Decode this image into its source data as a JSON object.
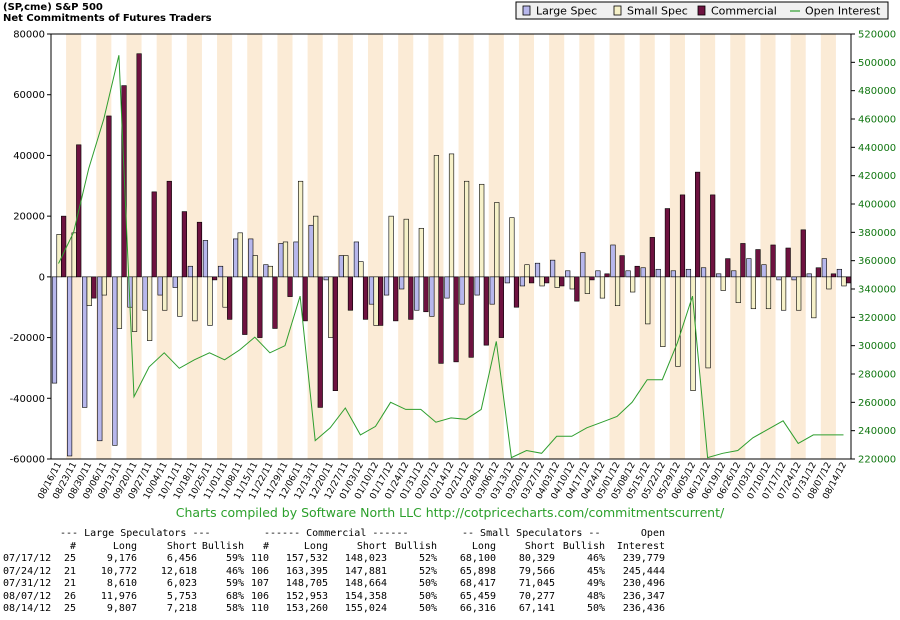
{
  "header": {
    "title": "(SP,cme) S&P 500",
    "subtitle": "Net Commitments of Futures Traders"
  },
  "legend": [
    "Large Spec",
    "Small Spec",
    "Commercial",
    "Open Interest"
  ],
  "colors": {
    "large_spec": "#b7b7ec",
    "small_spec": "#f6f1c9",
    "commercial": "#6e1240",
    "open_interest": "#2e9e2e",
    "band": "#fbebd6",
    "axis_text": "#000000",
    "right_axis_text": "#117711"
  },
  "credit": "Charts compiled by Software North LLC  http://cotpricecharts.com/commitmentscurrent/",
  "chart_data": {
    "type": "bar",
    "categories": [
      "08/16/11",
      "08/23/11",
      "08/30/11",
      "09/06/11",
      "09/13/11",
      "09/20/11",
      "09/27/11",
      "10/04/11",
      "10/11/11",
      "10/18/11",
      "10/25/11",
      "11/01/11",
      "11/08/11",
      "11/15/11",
      "11/22/11",
      "11/29/11",
      "12/06/11",
      "12/13/11",
      "12/20/11",
      "12/27/11",
      "01/03/12",
      "01/10/12",
      "01/17/12",
      "01/24/12",
      "01/31/12",
      "02/07/12",
      "02/14/12",
      "02/21/12",
      "02/28/12",
      "03/06/12",
      "03/13/12",
      "03/20/12",
      "03/27/12",
      "04/03/12",
      "04/10/12",
      "04/17/12",
      "04/24/12",
      "05/01/12",
      "05/08/12",
      "05/15/12",
      "05/22/12",
      "05/29/12",
      "06/05/12",
      "06/12/12",
      "06/19/12",
      "06/26/12",
      "07/03/12",
      "07/10/12",
      "07/17/12",
      "07/24/12",
      "07/31/12",
      "08/07/12",
      "08/14/12"
    ],
    "series": [
      {
        "name": "Large Spec",
        "values": [
          -35000,
          -59000,
          -43000,
          -54000,
          -55500,
          -10000,
          -11000,
          -6000,
          -3500,
          3500,
          12000,
          3500,
          12500,
          12500,
          4000,
          11000,
          11500,
          17000,
          -1000,
          7000,
          11500,
          -9000,
          -6000,
          -4000,
          -11000,
          -13000,
          -7000,
          -9000,
          -6000,
          -9000,
          -2000,
          -3000,
          4500,
          5500,
          2000,
          8000,
          2000,
          10500,
          2000,
          3000,
          2500,
          2000,
          2500,
          3000,
          1000,
          2000,
          6000,
          4000,
          -1000,
          -1000,
          1000,
          6000,
          2500
        ]
      },
      {
        "name": "Small Spec",
        "values": [
          14000,
          14500,
          -9500,
          -6000,
          -17000,
          -18000,
          -21000,
          -11000,
          -13000,
          -14500,
          -16000,
          -10000,
          14500,
          7000,
          3500,
          11500,
          31500,
          20000,
          -20000,
          7000,
          5000,
          -16000,
          20000,
          19000,
          16000,
          40000,
          40500,
          31500,
          30500,
          24500,
          19500,
          4000,
          -3000,
          -3500,
          -4000,
          -5500,
          -7000,
          -9500,
          -5000,
          -15500,
          -23000,
          -29500,
          -37500,
          -30000,
          -4500,
          -8500,
          -10500,
          -10500,
          -11000,
          -11000,
          -13500,
          -4000,
          -3000
        ]
      },
      {
        "name": "Commercial",
        "values": [
          20000,
          43500,
          -7000,
          53000,
          63000,
          73500,
          28000,
          31500,
          21500,
          18000,
          -1000,
          -14000,
          -19000,
          -20000,
          -17000,
          -6500,
          -14500,
          -43000,
          -37500,
          -11000,
          -14000,
          -16000,
          -14500,
          -14000,
          -11500,
          -28500,
          -28000,
          -26500,
          -22500,
          -20000,
          -10000,
          -2000,
          -2000,
          -3000,
          -8000,
          -1000,
          1000,
          7000,
          3500,
          13000,
          22500,
          27000,
          34500,
          27000,
          6000,
          11000,
          9000,
          10500,
          9500,
          15500,
          3000,
          1000,
          -2000
        ]
      },
      {
        "name": "Open Interest",
        "axis": "right",
        "values": [
          358000,
          380000,
          425000,
          460000,
          505000,
          264000,
          285000,
          295000,
          284000,
          290000,
          295000,
          290000,
          297000,
          306000,
          295000,
          300000,
          335000,
          233000,
          242000,
          256000,
          237000,
          243000,
          260000,
          255000,
          255000,
          246000,
          249000,
          248000,
          255000,
          303000,
          221000,
          226000,
          224000,
          236000,
          236000,
          242000,
          246000,
          250000,
          260000,
          276000,
          276000,
          302000,
          335000,
          221000,
          224000,
          226000,
          235000,
          241000,
          247000,
          231000,
          237000,
          237000,
          237000
        ]
      }
    ],
    "y_left": {
      "min": -60000,
      "max": 80000,
      "ticks": [
        "80000",
        "60000",
        "40000",
        "20000",
        "0",
        "-20000",
        "-40000",
        "-60000"
      ]
    },
    "y_right": {
      "min": 220000,
      "max": 520000,
      "ticks": [
        "520000",
        "500000",
        "480000",
        "460000",
        "440000",
        "420000",
        "400000",
        "380000",
        "360000",
        "340000",
        "320000",
        "300000",
        "280000",
        "260000",
        "240000",
        "220000"
      ]
    },
    "legend_position": "top-right",
    "grid": false
  },
  "table": {
    "group_headers": [
      "--- Large Speculators ---",
      "------ Commercial ------",
      "-- Small Speculators --",
      "Open"
    ],
    "col_headers": [
      "#",
      "Long",
      "Short",
      "Bullish",
      "#",
      "Long",
      "Short",
      "Bullish",
      "Long",
      "Short",
      "Bullish",
      "Interest"
    ],
    "rows": [
      [
        "07/17/12",
        "25",
        "9,176",
        "6,456",
        "59%",
        "110",
        "157,532",
        "148,023",
        "52%",
        "68,100",
        "80,329",
        "46%",
        "239,779"
      ],
      [
        "07/24/12",
        "21",
        "10,772",
        "12,618",
        "46%",
        "106",
        "163,395",
        "147,881",
        "52%",
        "65,898",
        "79,566",
        "45%",
        "245,444"
      ],
      [
        "07/31/12",
        "21",
        "8,610",
        "6,023",
        "59%",
        "107",
        "148,705",
        "148,664",
        "50%",
        "68,417",
        "71,045",
        "49%",
        "230,496"
      ],
      [
        "08/07/12",
        "26",
        "11,976",
        "5,753",
        "68%",
        "106",
        "152,953",
        "154,358",
        "50%",
        "65,459",
        "70,277",
        "48%",
        "236,347"
      ],
      [
        "08/14/12",
        "25",
        "9,807",
        "7,218",
        "58%",
        "110",
        "153,260",
        "155,024",
        "50%",
        "66,316",
        "67,141",
        "50%",
        "236,436"
      ]
    ]
  }
}
